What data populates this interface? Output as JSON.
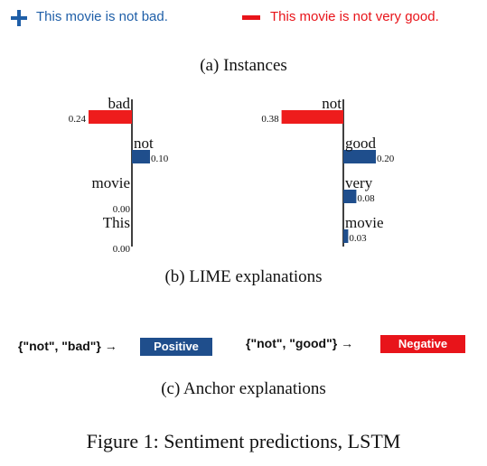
{
  "instances": {
    "positive": {
      "symbol": "+",
      "text": "This movie is not bad.",
      "color": "#1f5fa8"
    },
    "negative": {
      "symbol": "−",
      "text": "This movie is not very good.",
      "color": "#e8141a"
    },
    "caption": "(a) Instances"
  },
  "lime": {
    "caption": "(b) LIME explanations"
  },
  "chart_data": [
    {
      "type": "bar",
      "orientation": "horizontal",
      "categories": [
        "bad",
        "not",
        "movie",
        "This"
      ],
      "values": [
        -0.24,
        0.1,
        0.0,
        0.0
      ],
      "value_labels": [
        "0.24",
        "0.10",
        "0.00",
        "0.00"
      ],
      "colors": {
        "negative": "#ee1c1c",
        "positive": "#1f4e8c"
      },
      "xlim": [
        -0.24,
        0.1
      ]
    },
    {
      "type": "bar",
      "orientation": "horizontal",
      "categories": [
        "not",
        "good",
        "very",
        "movie"
      ],
      "values": [
        -0.38,
        0.2,
        0.08,
        0.03
      ],
      "value_labels": [
        "0.38",
        "0.20",
        "0.08",
        "0.03"
      ],
      "colors": {
        "negative": "#ee1c1c",
        "positive": "#1f4e8c"
      },
      "xlim": [
        -0.38,
        0.2
      ]
    }
  ],
  "anchor": {
    "caption": "(c) Anchor explanations",
    "left": {
      "rule": "{\"not\", \"bad\"} →",
      "label": "Positive",
      "color": "#1f4e8c"
    },
    "right": {
      "rule": "{\"not\", \"good\"} →",
      "label": "Negative",
      "color": "#e8141a"
    }
  },
  "figure_caption": "Figure 1: Sentiment predictions, LSTM"
}
